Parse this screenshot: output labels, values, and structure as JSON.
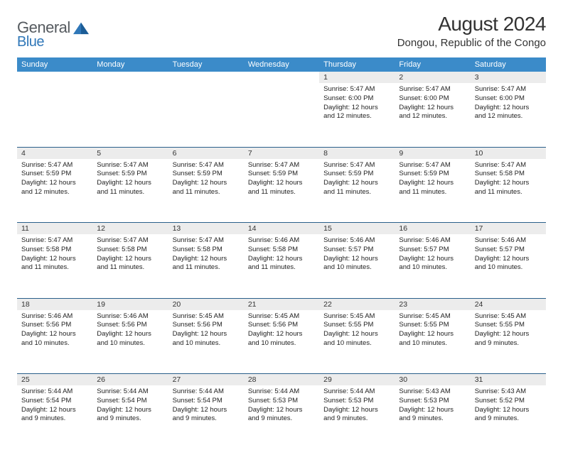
{
  "header": {
    "logo_general": "General",
    "logo_blue": "Blue",
    "month_title": "August 2024",
    "location": "Dongou, Republic of the Congo"
  },
  "colors": {
    "header_bg": "#3b8bc9",
    "header_text": "#ffffff",
    "daynum_bg": "#ececec",
    "text": "#222222",
    "rule": "#2a5f8a",
    "logo_gray": "#555a5f",
    "logo_blue": "#2f77b8"
  },
  "daynames": [
    "Sunday",
    "Monday",
    "Tuesday",
    "Wednesday",
    "Thursday",
    "Friday",
    "Saturday"
  ],
  "weeks": [
    [
      null,
      null,
      null,
      null,
      {
        "n": "1",
        "sunrise": "5:47 AM",
        "sunset": "6:00 PM",
        "daylight": "12 hours and 12 minutes."
      },
      {
        "n": "2",
        "sunrise": "5:47 AM",
        "sunset": "6:00 PM",
        "daylight": "12 hours and 12 minutes."
      },
      {
        "n": "3",
        "sunrise": "5:47 AM",
        "sunset": "6:00 PM",
        "daylight": "12 hours and 12 minutes."
      }
    ],
    [
      {
        "n": "4",
        "sunrise": "5:47 AM",
        "sunset": "5:59 PM",
        "daylight": "12 hours and 12 minutes."
      },
      {
        "n": "5",
        "sunrise": "5:47 AM",
        "sunset": "5:59 PM",
        "daylight": "12 hours and 11 minutes."
      },
      {
        "n": "6",
        "sunrise": "5:47 AM",
        "sunset": "5:59 PM",
        "daylight": "12 hours and 11 minutes."
      },
      {
        "n": "7",
        "sunrise": "5:47 AM",
        "sunset": "5:59 PM",
        "daylight": "12 hours and 11 minutes."
      },
      {
        "n": "8",
        "sunrise": "5:47 AM",
        "sunset": "5:59 PM",
        "daylight": "12 hours and 11 minutes."
      },
      {
        "n": "9",
        "sunrise": "5:47 AM",
        "sunset": "5:59 PM",
        "daylight": "12 hours and 11 minutes."
      },
      {
        "n": "10",
        "sunrise": "5:47 AM",
        "sunset": "5:58 PM",
        "daylight": "12 hours and 11 minutes."
      }
    ],
    [
      {
        "n": "11",
        "sunrise": "5:47 AM",
        "sunset": "5:58 PM",
        "daylight": "12 hours and 11 minutes."
      },
      {
        "n": "12",
        "sunrise": "5:47 AM",
        "sunset": "5:58 PM",
        "daylight": "12 hours and 11 minutes."
      },
      {
        "n": "13",
        "sunrise": "5:47 AM",
        "sunset": "5:58 PM",
        "daylight": "12 hours and 11 minutes."
      },
      {
        "n": "14",
        "sunrise": "5:46 AM",
        "sunset": "5:58 PM",
        "daylight": "12 hours and 11 minutes."
      },
      {
        "n": "15",
        "sunrise": "5:46 AM",
        "sunset": "5:57 PM",
        "daylight": "12 hours and 10 minutes."
      },
      {
        "n": "16",
        "sunrise": "5:46 AM",
        "sunset": "5:57 PM",
        "daylight": "12 hours and 10 minutes."
      },
      {
        "n": "17",
        "sunrise": "5:46 AM",
        "sunset": "5:57 PM",
        "daylight": "12 hours and 10 minutes."
      }
    ],
    [
      {
        "n": "18",
        "sunrise": "5:46 AM",
        "sunset": "5:56 PM",
        "daylight": "12 hours and 10 minutes."
      },
      {
        "n": "19",
        "sunrise": "5:46 AM",
        "sunset": "5:56 PM",
        "daylight": "12 hours and 10 minutes."
      },
      {
        "n": "20",
        "sunrise": "5:45 AM",
        "sunset": "5:56 PM",
        "daylight": "12 hours and 10 minutes."
      },
      {
        "n": "21",
        "sunrise": "5:45 AM",
        "sunset": "5:56 PM",
        "daylight": "12 hours and 10 minutes."
      },
      {
        "n": "22",
        "sunrise": "5:45 AM",
        "sunset": "5:55 PM",
        "daylight": "12 hours and 10 minutes."
      },
      {
        "n": "23",
        "sunrise": "5:45 AM",
        "sunset": "5:55 PM",
        "daylight": "12 hours and 10 minutes."
      },
      {
        "n": "24",
        "sunrise": "5:45 AM",
        "sunset": "5:55 PM",
        "daylight": "12 hours and 9 minutes."
      }
    ],
    [
      {
        "n": "25",
        "sunrise": "5:44 AM",
        "sunset": "5:54 PM",
        "daylight": "12 hours and 9 minutes."
      },
      {
        "n": "26",
        "sunrise": "5:44 AM",
        "sunset": "5:54 PM",
        "daylight": "12 hours and 9 minutes."
      },
      {
        "n": "27",
        "sunrise": "5:44 AM",
        "sunset": "5:54 PM",
        "daylight": "12 hours and 9 minutes."
      },
      {
        "n": "28",
        "sunrise": "5:44 AM",
        "sunset": "5:53 PM",
        "daylight": "12 hours and 9 minutes."
      },
      {
        "n": "29",
        "sunrise": "5:44 AM",
        "sunset": "5:53 PM",
        "daylight": "12 hours and 9 minutes."
      },
      {
        "n": "30",
        "sunrise": "5:43 AM",
        "sunset": "5:53 PM",
        "daylight": "12 hours and 9 minutes."
      },
      {
        "n": "31",
        "sunrise": "5:43 AM",
        "sunset": "5:52 PM",
        "daylight": "12 hours and 9 minutes."
      }
    ]
  ],
  "labels": {
    "sunrise": "Sunrise:",
    "sunset": "Sunset:",
    "daylight": "Daylight:"
  }
}
